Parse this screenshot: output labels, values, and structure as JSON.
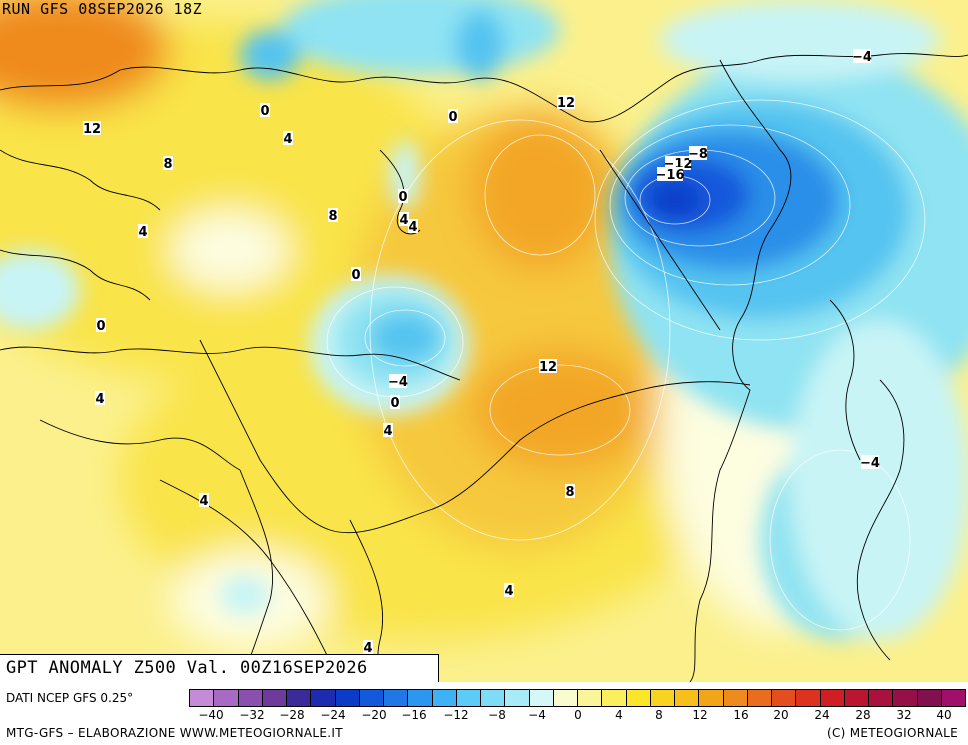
{
  "header": {
    "run": "RUN GFS 08SEP2026 18Z"
  },
  "title": "GPT ANOMALY Z500 Val. 00Z16SEP2026",
  "footer": {
    "source": "DATI NCEP GFS 0.25°",
    "credits": "MTG-GFS – ELABORAZIONE WWW.METEOGIORNALE.IT",
    "copyright": "(C) METEOGIORNALE"
  },
  "legend": {
    "tick_labels": [
      "-40",
      "-32",
      "-28",
      "-24",
      "-20",
      "-16",
      "-12",
      "-8",
      "-4",
      "0",
      "4",
      "8",
      "12",
      "16",
      "20",
      "24",
      "28",
      "32",
      "40"
    ],
    "colors": [
      "#c58bd6",
      "#a86ac4",
      "#8b4fb0",
      "#6e3a9c",
      "#3b2a9a",
      "#1c2bb0",
      "#0b3cc8",
      "#1458dc",
      "#1f78e6",
      "#2c96f0",
      "#3fb2f5",
      "#5ccbf8",
      "#7fdcf6",
      "#a8ebf6",
      "#d4f7f8",
      "#fbfbd0",
      "#fbf59a",
      "#fbef5c",
      "#fbe62a",
      "#f8d420",
      "#f6bf1a",
      "#f3a51a",
      "#ef8a1c",
      "#ea6c1e",
      "#e44e1e",
      "#dc321e",
      "#cf1f24",
      "#bc1530",
      "#a8123c",
      "#951046",
      "#82104e",
      "#a0106a"
    ]
  },
  "map": {
    "colors": {
      "ocean_edge": "#fdfde0",
      "base": "#fbf08c",
      "yellow": "#f9e44a",
      "light_orange": "#f6c83c",
      "orange": "#f3a628",
      "dark_orange": "#ef8a1c",
      "cyan_light": "#c8f4f6",
      "cyan": "#8fe3f2",
      "blue_light": "#55c4f0",
      "blue": "#2a8fe8",
      "blue_dark": "#1458dc",
      "blue_deep": "#0b3cc8"
    },
    "contour_labels": [
      {
        "text": "12"
      },
      {
        "text": "0"
      },
      {
        "text": "4"
      },
      {
        "text": "8"
      },
      {
        "text": "4"
      },
      {
        "text": "0"
      },
      {
        "text": "0"
      },
      {
        "text": "4"
      },
      {
        "text": "0"
      },
      {
        "text": "4"
      },
      {
        "text": "8"
      },
      {
        "text": "4"
      },
      {
        "text": "0"
      },
      {
        "text": "12"
      },
      {
        "text": "-12"
      },
      {
        "text": "-8"
      },
      {
        "text": "-16"
      },
      {
        "text": "-4"
      },
      {
        "text": "-4"
      },
      {
        "text": "0"
      },
      {
        "text": "12"
      },
      {
        "text": "4"
      },
      {
        "text": "4"
      },
      {
        "text": "8"
      },
      {
        "text": "-4"
      },
      {
        "text": "4"
      },
      {
        "text": "4"
      }
    ]
  }
}
